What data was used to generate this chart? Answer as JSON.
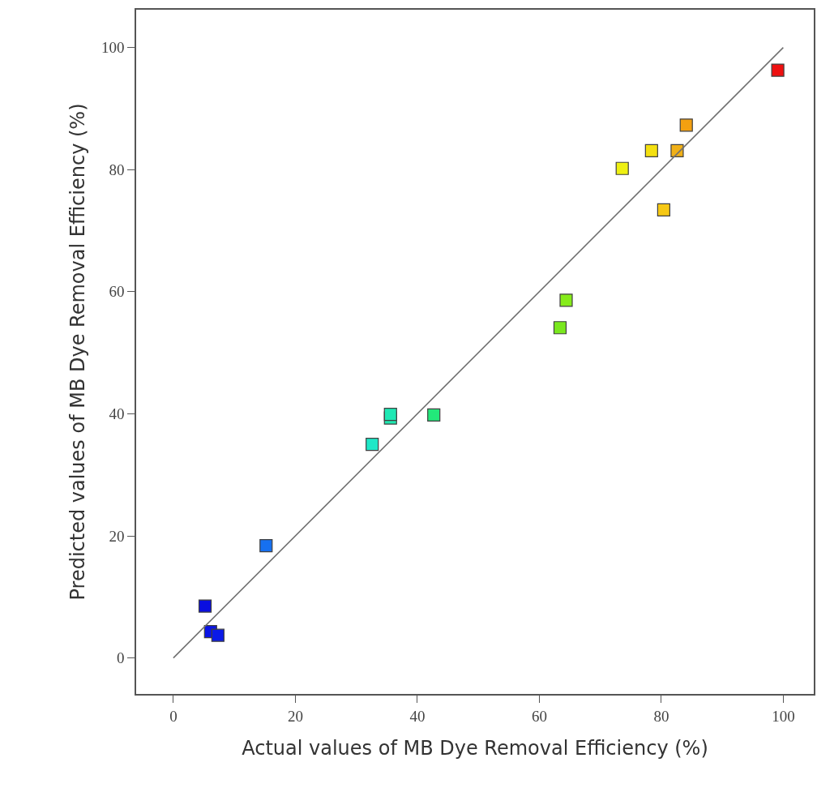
{
  "chart_data": {
    "type": "scatter",
    "xlabel": "Actual values of MB Dye Removal Efficiency (%)",
    "ylabel": "Predicted values of MB Dye Removal Efficiency (%)",
    "x": [
      5.2,
      6.1,
      7.3,
      15.2,
      32.6,
      35.6,
      35.6,
      42.7,
      63.4,
      64.4,
      73.6,
      78.4,
      80.4,
      82.6,
      84.1,
      99.1
    ],
    "series": [
      {
        "marker": "square",
        "values": [
          8.5,
          4.3,
          3.7,
          18.4,
          35.0,
          39.3,
          39.9,
          39.8,
          54.1,
          58.6,
          80.2,
          83.1,
          73.4,
          83.1,
          87.3,
          96.3
        ],
        "colors": [
          "#0a0ee0",
          "#0a14e6",
          "#0a1ae8",
          "#1670f0",
          "#1ee8c8",
          "#1ee8b0",
          "#1ee8b4",
          "#22e87a",
          "#7ae81e",
          "#86ec1a",
          "#eef012",
          "#f4e010",
          "#f6c814",
          "#f0b018",
          "#f4a010",
          "#ee1010"
        ]
      },
      {
        "type": "line",
        "x": [
          0,
          100
        ],
        "values": [
          0,
          100
        ],
        "color": "#707070",
        "line_style": "solid",
        "marker": "none"
      }
    ],
    "xlim": [
      -6.1,
      105
    ],
    "ylim": [
      -5.9,
      106.2
    ],
    "xticks": [
      0,
      20,
      40,
      60,
      80,
      100
    ],
    "yticks": [
      0,
      20,
      40,
      60,
      80,
      100
    ],
    "grid": false,
    "legend": false
  }
}
